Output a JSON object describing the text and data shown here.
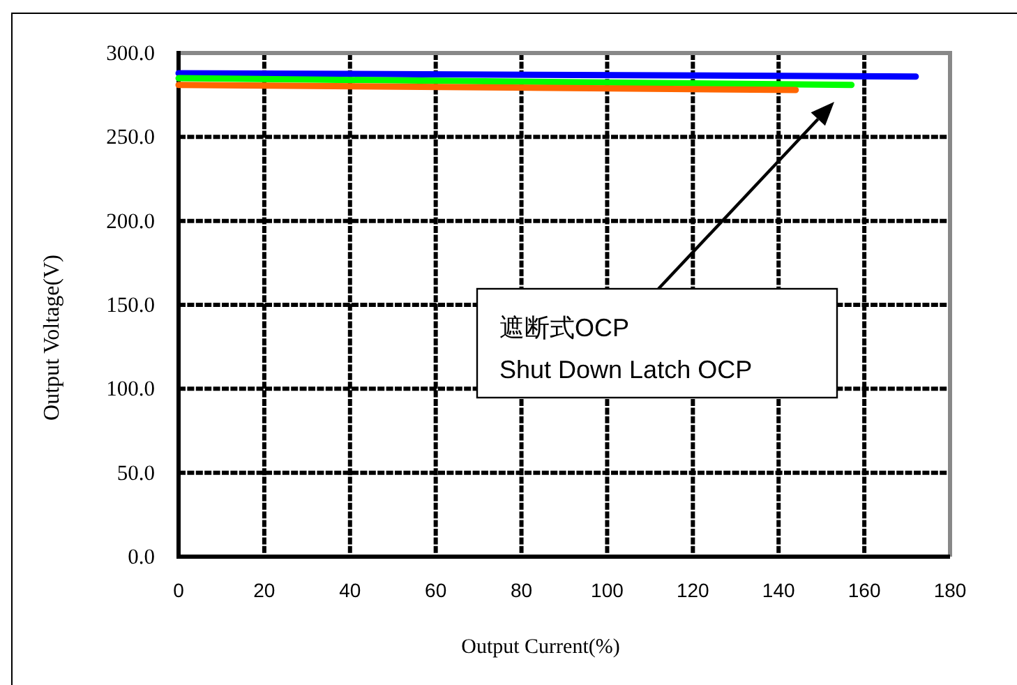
{
  "chart_data": {
    "type": "line",
    "xlabel": "Output Current(%)",
    "ylabel": "Output Voltage(V)",
    "series": [
      {
        "color": "#0000ff",
        "x": [
          0,
          172
        ],
        "values": [
          288,
          286
        ]
      },
      {
        "color": "#00ff00",
        "x": [
          0,
          157
        ],
        "values": [
          285,
          281
        ]
      },
      {
        "color": "#ff6600",
        "x": [
          0,
          144
        ],
        "values": [
          281,
          278
        ]
      }
    ],
    "xlim": [
      0,
      180
    ],
    "ylim": [
      0,
      300
    ],
    "xticks": [
      0,
      20,
      40,
      60,
      80,
      100,
      120,
      140,
      160,
      180
    ],
    "yticks": [
      {
        "value": 0,
        "label": "0.0"
      },
      {
        "value": 50,
        "label": "50.0"
      },
      {
        "value": 100,
        "label": "100.0"
      },
      {
        "value": 150,
        "label": "150.0"
      },
      {
        "value": 200,
        "label": "200.0"
      },
      {
        "value": 250,
        "label": "250.0"
      },
      {
        "value": 300,
        "label": "300.0"
      }
    ],
    "grid": true,
    "annotations": [
      "遮断式OCP\nShut Down Latch OCP"
    ]
  }
}
